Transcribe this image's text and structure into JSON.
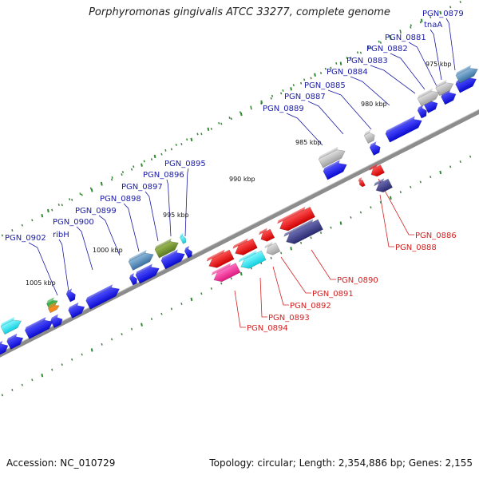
{
  "title": "Porphyromonas gingivalis ATCC 33277, complete genome",
  "footer": {
    "accession": "Accession: NC_010729",
    "topology": "Topology: circular; Length: 2,354,886 bp; Genes: 2,155"
  },
  "colors": {
    "backbone": "#808080",
    "forward_label": "#1a1aa8",
    "reverse_label": "#d42020",
    "tick_green": "#2e8b2e",
    "gene_blue": "#1a1ae6",
    "gene_grey": "#b0b0b0",
    "gene_red": "#e81818",
    "gene_cyan": "#20e0e8",
    "gene_navy": "#3a3a8a",
    "gene_steel": "#4682b4",
    "gene_olive": "#6b8e23",
    "gene_magenta": "#e81e8c"
  },
  "scale_labels": [
    "975 kbp",
    "980 kbp",
    "985 kbp",
    "990 kbp",
    "995 kbp",
    "1000 kbp",
    "1005 kbp"
  ],
  "forward_genes": [
    "PGN_0879",
    "tnaA",
    "PGN_0881",
    "PGN_0882",
    "PGN_0883",
    "PGN_0884",
    "PGN_0885",
    "PGN_0887",
    "PGN_0889",
    "PGN_0895",
    "PGN_0896",
    "PGN_0897",
    "PGN_0898",
    "PGN_0899",
    "PGN_0900",
    "ribH",
    "PGN_0902"
  ],
  "reverse_genes": [
    "PGN_0886",
    "PGN_0888",
    "PGN_0890",
    "PGN_0891",
    "PGN_0892",
    "PGN_0893",
    "PGN_0894"
  ]
}
